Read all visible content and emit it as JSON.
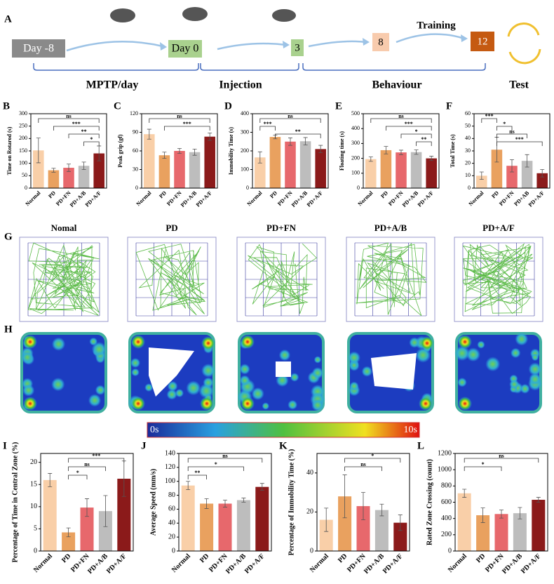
{
  "figure": {
    "panel_a": "A",
    "steps": [
      "Day  -8",
      "Day 0",
      "3",
      "8",
      "12"
    ],
    "training": "Training",
    "phases": [
      "MPTP/day",
      "Injection",
      "Behaviour",
      "Test"
    ],
    "panel_g": "G",
    "panel_h": "H",
    "groups": [
      "Nomal",
      "PD",
      "PD+FN",
      "PD+A/B",
      "PD+A/F"
    ],
    "colorbar": [
      "0s",
      "10s"
    ]
  },
  "chart_data": [
    {
      "panel": "B",
      "type": "bar",
      "ylabel": "Time on Rotarod (s)",
      "categories": [
        "Normal",
        "PD",
        "PD+FN",
        "PD+A/B",
        "PD+A/F"
      ],
      "values": [
        152,
        72,
        82,
        90,
        140
      ],
      "errors": [
        50,
        8,
        15,
        15,
        30
      ],
      "colors": [
        "#f9cfa8",
        "#e9a15f",
        "#e7686c",
        "#bdbdbd",
        "#8b1a1a"
      ],
      "ylim": [
        0,
        300
      ],
      "yticks": [
        0,
        50,
        100,
        150,
        200,
        250,
        300
      ],
      "annotations": [
        "ns",
        "***",
        "**",
        "*"
      ]
    },
    {
      "panel": "C",
      "type": "bar",
      "ylabel": "Peak grip (gf)",
      "categories": [
        "Normal",
        "PD",
        "PD+FN",
        "PD+A/B",
        "PD+A/F"
      ],
      "values": [
        87,
        53,
        60,
        58,
        83
      ],
      "errors": [
        8,
        5,
        4,
        5,
        6
      ],
      "colors": [
        "#f9cfa8",
        "#e9a15f",
        "#e7686c",
        "#bdbdbd",
        "#8b1a1a"
      ],
      "ylim": [
        0,
        120
      ],
      "yticks": [
        0,
        30,
        60,
        90,
        120
      ],
      "annotations": [
        "ns",
        "***"
      ]
    },
    {
      "panel": "D",
      "type": "bar",
      "ylabel": "Immobility Time (s)",
      "categories": [
        "Normal",
        "PD",
        "PD+FN",
        "PD+A/B",
        "PD+A/F"
      ],
      "values": [
        165,
        275,
        250,
        252,
        210
      ],
      "errors": [
        30,
        10,
        20,
        20,
        20
      ],
      "colors": [
        "#f9cfa8",
        "#e9a15f",
        "#e7686c",
        "#bdbdbd",
        "#8b1a1a"
      ],
      "ylim": [
        0,
        400
      ],
      "yticks": [
        0,
        100,
        200,
        300,
        400
      ],
      "annotations": [
        "ns",
        "***",
        "**"
      ]
    },
    {
      "panel": "E",
      "type": "bar",
      "ylabel": "Floating time (s)",
      "categories": [
        "Normal",
        "PD",
        "PD+FN",
        "PD+A/B",
        "PD+A/F"
      ],
      "values": [
        195,
        255,
        240,
        242,
        200
      ],
      "errors": [
        15,
        25,
        15,
        15,
        15
      ],
      "colors": [
        "#f9cfa8",
        "#e9a15f",
        "#e7686c",
        "#bdbdbd",
        "#8b1a1a"
      ],
      "ylim": [
        0,
        500
      ],
      "yticks": [
        0,
        100,
        200,
        300,
        400,
        500
      ],
      "annotations": [
        "ns",
        "***",
        "*",
        "**"
      ]
    },
    {
      "panel": "F",
      "type": "bar",
      "ylabel": "Total Time (s)",
      "categories": [
        "Normal",
        "PD",
        "PD+FN",
        "PD+AB",
        "PD+A/F"
      ],
      "values": [
        10,
        31,
        18,
        22,
        12
      ],
      "errors": [
        3,
        10,
        5,
        5,
        3
      ],
      "colors": [
        "#f9cfa8",
        "#e9a15f",
        "#e7686c",
        "#bdbdbd",
        "#8b1a1a"
      ],
      "ylim": [
        0,
        60
      ],
      "yticks": [
        0,
        10,
        20,
        30,
        40,
        50,
        60
      ],
      "annotations": [
        "***",
        "*",
        "ns",
        "***"
      ]
    },
    {
      "panel": "I",
      "type": "bar",
      "ylabel": "Percentage of Time in Central Zone (%)",
      "categories": [
        "Normal",
        "PD",
        "PD+FN",
        "PD+A/B",
        "PD+A/F"
      ],
      "values": [
        16,
        4.2,
        9.8,
        9,
        16.3
      ],
      "errors": [
        1.5,
        1,
        2,
        3.5,
        4
      ],
      "colors": [
        "#f9cfa8",
        "#e9a15f",
        "#e7686c",
        "#bdbdbd",
        "#8b1a1a"
      ],
      "ylim": [
        0,
        22
      ],
      "yticks": [
        0,
        5,
        10,
        15,
        20
      ],
      "annotations": [
        "***",
        "ns",
        "*"
      ]
    },
    {
      "panel": "J",
      "type": "bar",
      "ylabel": "Average Speed (mm/s)",
      "categories": [
        "Normal",
        "PD",
        "PD+FN",
        "PD+A/B",
        "PD+A/F"
      ],
      "values": [
        94,
        68,
        68,
        73,
        92
      ],
      "errors": [
        6,
        7,
        5,
        3,
        5
      ],
      "colors": [
        "#f9cfa8",
        "#e9a15f",
        "#e7686c",
        "#bdbdbd",
        "#8b1a1a"
      ],
      "ylim": [
        0,
        140
      ],
      "yticks": [
        0,
        20,
        40,
        60,
        80,
        100,
        120,
        140
      ],
      "annotations": [
        "ns",
        "*",
        "**"
      ]
    },
    {
      "panel": "K",
      "type": "bar",
      "ylabel": "Percentage of Immobility Time (%)",
      "categories": [
        "Normal",
        "PD",
        "PD+FN",
        "PD+A/B",
        "PD+A/F"
      ],
      "values": [
        16,
        28,
        23,
        21,
        14.5
      ],
      "errors": [
        6,
        11,
        7,
        3,
        4
      ],
      "colors": [
        "#f9cfa8",
        "#e9a15f",
        "#e7686c",
        "#bdbdbd",
        "#8b1a1a"
      ],
      "ylim": [
        0,
        50
      ],
      "yticks": [
        0,
        20,
        40
      ],
      "annotations": [
        "*",
        "ns"
      ]
    },
    {
      "panel": "L",
      "type": "bar",
      "ylabel": "Rated Zone Crossing (count)",
      "categories": [
        "Normal",
        "PD",
        "PD+FN",
        "PD+A/B",
        "PD+A/F"
      ],
      "values": [
        710,
        440,
        455,
        465,
        630
      ],
      "errors": [
        50,
        90,
        50,
        70,
        30
      ],
      "colors": [
        "#f9cfa8",
        "#e9a15f",
        "#e7686c",
        "#bdbdbd",
        "#8b1a1a"
      ],
      "ylim": [
        0,
        1200
      ],
      "yticks": [
        0,
        200,
        400,
        600,
        800,
        1000,
        1200
      ],
      "annotations": [
        "ns",
        "*"
      ]
    }
  ]
}
